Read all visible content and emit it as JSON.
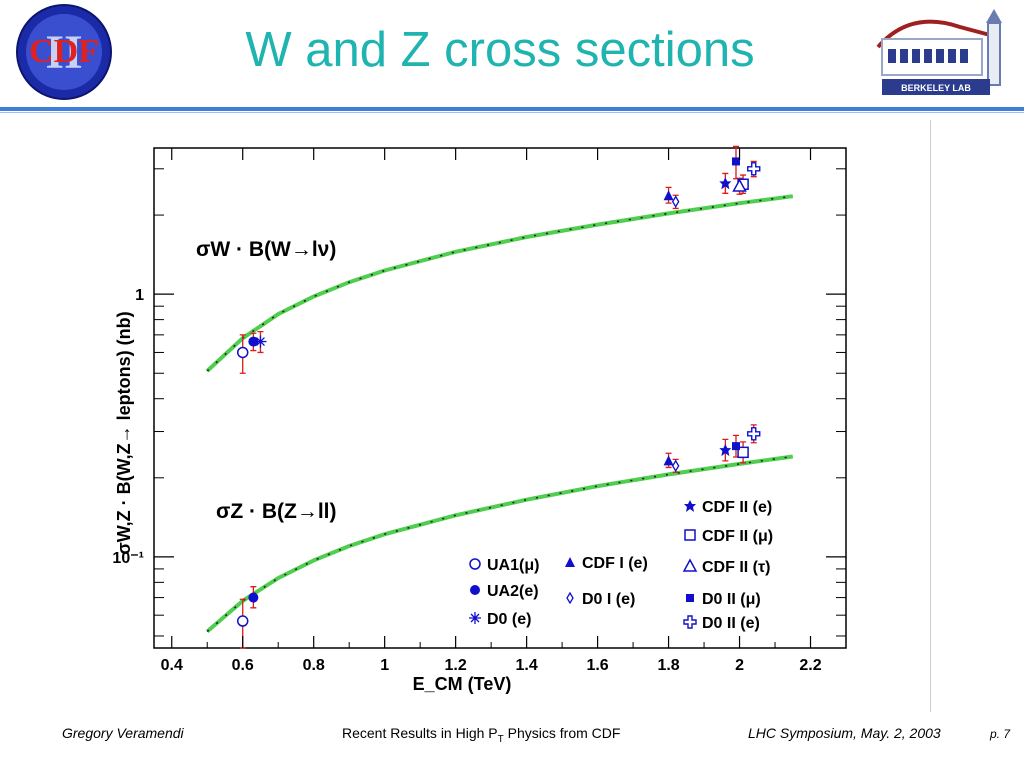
{
  "slide": {
    "title": "W and Z cross sections",
    "logo_left_text": "CDF",
    "logo_left_numeral": "II",
    "logo_right_text": "BERKELEY LAB",
    "footer_author": "Gregory Veramendi",
    "footer_title_pre": "Recent Results in High P",
    "footer_title_sub": "T",
    "footer_title_post": " Physics from CDF",
    "footer_event": "LHC Symposium, May. 2, 2003",
    "footer_page": "p. 7",
    "accent_color": "#1fb4b0",
    "rule_color": "#3f7fd9"
  },
  "chart_data": {
    "type": "scatter",
    "y_scale": "log",
    "xlim": [
      0.35,
      2.3
    ],
    "ylim": [
      0.045,
      3.6
    ],
    "xlabel": "E_CM (TeV)",
    "ylabel": "σW,Z · B(W,Z→ leptons) (nb)",
    "x_ticks": [
      0.4,
      0.6,
      0.8,
      1,
      1.2,
      1.4,
      1.6,
      1.8,
      2,
      2.2
    ],
    "x_tick_labels": [
      "0.4",
      "0.6",
      "0.8",
      "1",
      "1.2",
      "1.4",
      "1.6",
      "1.8",
      "2",
      "2.2"
    ],
    "y_ticks": [
      1,
      0.1
    ],
    "y_tick_labels": [
      "1",
      "10⁻¹"
    ],
    "annotations": [
      "σW · B(W→lν)",
      "σZ · B(Z→ll)"
    ],
    "theory_curves": [
      {
        "name": "W",
        "color": "#4fce4f",
        "points": [
          [
            0.5,
            0.51
          ],
          [
            0.6,
            0.68
          ],
          [
            0.7,
            0.84
          ],
          [
            0.8,
            0.98
          ],
          [
            0.9,
            1.11
          ],
          [
            1.0,
            1.23
          ],
          [
            1.2,
            1.45
          ],
          [
            1.4,
            1.65
          ],
          [
            1.6,
            1.84
          ],
          [
            1.8,
            2.03
          ],
          [
            2.0,
            2.22
          ],
          [
            2.15,
            2.36
          ]
        ]
      },
      {
        "name": "Z",
        "color": "#4fce4f",
        "points": [
          [
            0.5,
            0.052
          ],
          [
            0.6,
            0.068
          ],
          [
            0.7,
            0.083
          ],
          [
            0.8,
            0.097
          ],
          [
            0.9,
            0.11
          ],
          [
            1.0,
            0.122
          ],
          [
            1.2,
            0.144
          ],
          [
            1.4,
            0.165
          ],
          [
            1.6,
            0.186
          ],
          [
            1.8,
            0.206
          ],
          [
            2.0,
            0.226
          ],
          [
            2.15,
            0.241
          ]
        ]
      }
    ],
    "series": [
      {
        "name": "UA1(μ)",
        "marker": "circle-open",
        "color": "#1010cc",
        "points": [
          {
            "x": 0.6,
            "y": 0.6,
            "ylo": 0.5,
            "yhi": 0.7,
            "group": "W"
          },
          {
            "x": 0.6,
            "y": 0.057,
            "ylo": 0.045,
            "yhi": 0.069,
            "group": "Z"
          }
        ]
      },
      {
        "name": "UA2(e)",
        "marker": "circle-filled",
        "color": "#1010cc",
        "points": [
          {
            "x": 0.63,
            "y": 0.66,
            "ylo": 0.61,
            "yhi": 0.71,
            "group": "W"
          },
          {
            "x": 0.63,
            "y": 0.07,
            "ylo": 0.064,
            "yhi": 0.077,
            "group": "Z"
          }
        ]
      },
      {
        "name": "D0 (e)",
        "marker": "asterisk",
        "color": "#1010cc",
        "points": [
          {
            "x": 0.65,
            "y": 0.66,
            "ylo": 0.6,
            "yhi": 0.72,
            "group": "W"
          }
        ]
      },
      {
        "name": "CDF I (e)",
        "marker": "triangle-filled",
        "color": "#1010cc",
        "points": [
          {
            "x": 1.8,
            "y": 2.38,
            "ylo": 2.22,
            "yhi": 2.55,
            "group": "W"
          },
          {
            "x": 1.8,
            "y": 0.233,
            "ylo": 0.219,
            "yhi": 0.248,
            "group": "Z"
          }
        ]
      },
      {
        "name": "D0 I (e)",
        "marker": "diamond-open",
        "color": "#1010cc",
        "points": [
          {
            "x": 1.82,
            "y": 2.25,
            "ylo": 2.12,
            "yhi": 2.38,
            "group": "W"
          },
          {
            "x": 1.82,
            "y": 0.222,
            "ylo": 0.21,
            "yhi": 0.235,
            "group": "Z"
          }
        ]
      },
      {
        "name": "CDF II (e)",
        "marker": "star-filled",
        "color": "#1010cc",
        "points": [
          {
            "x": 1.96,
            "y": 2.64,
            "ylo": 2.42,
            "yhi": 2.88,
            "group": "W"
          },
          {
            "x": 1.96,
            "y": 0.255,
            "ylo": 0.232,
            "yhi": 0.28,
            "group": "Z"
          }
        ]
      },
      {
        "name": "CDF II (μ)",
        "marker": "square-open",
        "color": "#1010cc",
        "points": [
          {
            "x": 2.01,
            "y": 2.62,
            "ylo": 2.42,
            "yhi": 2.84,
            "group": "W"
          },
          {
            "x": 2.01,
            "y": 0.25,
            "ylo": 0.228,
            "yhi": 0.274,
            "group": "Z"
          }
        ]
      },
      {
        "name": "CDF II (τ)",
        "marker": "triangle-open",
        "color": "#1010cc",
        "points": [
          {
            "x": 2.0,
            "y": 2.58,
            "ylo": 2.4,
            "yhi": 2.76,
            "group": "W"
          }
        ]
      },
      {
        "name": "D0 II (μ)",
        "marker": "square-filled",
        "color": "#1010cc",
        "points": [
          {
            "x": 1.99,
            "y": 3.2,
            "ylo": 2.75,
            "yhi": 3.65,
            "group": "W"
          },
          {
            "x": 1.99,
            "y": 0.264,
            "ylo": 0.24,
            "yhi": 0.29,
            "group": "Z"
          }
        ]
      },
      {
        "name": "D0 II (e)",
        "marker": "cross-open",
        "color": "#1010cc",
        "points": [
          {
            "x": 2.04,
            "y": 3.0,
            "ylo": 2.8,
            "yhi": 3.2,
            "group": "W"
          },
          {
            "x": 2.04,
            "y": 0.294,
            "ylo": 0.272,
            "yhi": 0.318,
            "group": "Z"
          }
        ]
      }
    ],
    "legend": [
      {
        "label": "UA1(μ)",
        "marker": "circle-open"
      },
      {
        "label": "UA2(e)",
        "marker": "circle-filled"
      },
      {
        "label": "D0 (e)",
        "marker": "asterisk"
      },
      {
        "label": "CDF I (e)",
        "marker": "triangle-filled"
      },
      {
        "label": "D0 I (e)",
        "marker": "diamond-open"
      },
      {
        "label": "CDF II (e)",
        "marker": "star-filled"
      },
      {
        "label": "CDF II (μ)",
        "marker": "square-open"
      },
      {
        "label": "CDF II (τ)",
        "marker": "triangle-open"
      },
      {
        "label": "D0 II (μ)",
        "marker": "square-filled"
      },
      {
        "label": "D0 II (e)",
        "marker": "cross-open"
      }
    ],
    "grid": false,
    "legend_placement": "bottom-right"
  }
}
